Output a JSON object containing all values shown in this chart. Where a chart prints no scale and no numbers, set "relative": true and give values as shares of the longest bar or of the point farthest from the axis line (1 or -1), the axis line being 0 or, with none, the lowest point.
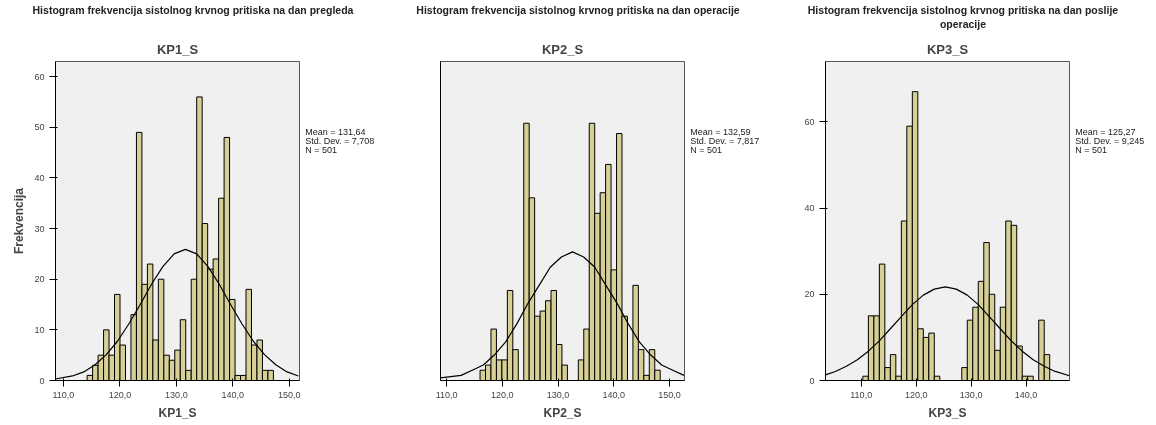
{
  "chart_data": [
    {
      "type": "histogram",
      "title": "Histogram frekvencija sistolnog krvnog pritiska na dan pregleda",
      "subtitle": "KP1_S",
      "xlabel": "KP1_S",
      "ylabel": "Frekvencija",
      "color": "#d6d097",
      "bins": [
        114.2,
        115.17,
        116.14,
        117.11,
        118.08,
        119.05,
        120.02,
        120.99,
        121.96,
        122.93,
        123.9,
        124.87,
        125.84,
        126.81,
        127.78,
        128.75,
        129.72,
        130.69,
        131.66,
        132.63,
        133.6,
        134.57,
        135.54,
        136.51,
        137.48,
        138.45,
        139.42,
        140.39,
        141.36,
        142.33,
        143.3,
        144.27,
        145.24,
        146.21,
        147.18
      ],
      "values": [
        1,
        3,
        5,
        10,
        5,
        17,
        7,
        0,
        13,
        49,
        19,
        23,
        8,
        20,
        5,
        4,
        6,
        12,
        2,
        20,
        56,
        31,
        22,
        24,
        36,
        48,
        16,
        1,
        1,
        18,
        7,
        8,
        2,
        2
      ],
      "series": [
        {
          "type": "line",
          "color": "#000000",
          "x": [
            108.6,
            111.6,
            113.6,
            115.6,
            117.6,
            119.6,
            121.6,
            123.6,
            125.6,
            127.6,
            129.6,
            131.6,
            133.6,
            135.6,
            137.6,
            139.6,
            141.6,
            143.6,
            145.6,
            147.6,
            149.6,
            151.6
          ],
          "values": [
            0.3,
            0.9,
            1.7,
            3.1,
            5.1,
            7.8,
            11.2,
            15.0,
            19.0,
            22.5,
            25.0,
            25.9,
            25.0,
            22.5,
            19.0,
            15.0,
            11.2,
            7.8,
            5.1,
            3.1,
            1.7,
            0.9
          ]
        }
      ],
      "xlim": [
        108.6,
        151.8
      ],
      "ylim": [
        0,
        63
      ],
      "xticks": [
        {
          "value": 110,
          "label": "110,0"
        },
        {
          "value": 120,
          "label": "120,0"
        },
        {
          "value": 130,
          "label": "130,0"
        },
        {
          "value": 140,
          "label": "140,0"
        },
        {
          "value": 150,
          "label": "150,0"
        }
      ],
      "yticks": [
        0,
        10,
        20,
        30,
        40,
        50,
        60
      ],
      "annotations": [
        "Mean = 131,64",
        "Std. Dev. = 7,708",
        "N = 501"
      ]
    },
    {
      "type": "histogram",
      "title": "Histogram frekvencija sistolnog krvnog pritiska na dan operacije",
      "subtitle": "KP2_S",
      "xlabel": "KP2_S",
      "color": "#d6d097",
      "relative": true,
      "bins": [
        116.0,
        116.98,
        117.96,
        118.94,
        119.92,
        120.9,
        121.88,
        122.86,
        123.84,
        124.82,
        125.8,
        126.78,
        127.76,
        128.74,
        129.72,
        130.7,
        131.68,
        132.66,
        133.64,
        134.62,
        135.6,
        136.58,
        137.56,
        138.54,
        139.52,
        140.5,
        141.48,
        142.46,
        143.44,
        144.42,
        145.4,
        146.38,
        147.36,
        148.34
      ],
      "values": [
        0.04,
        0.06,
        0.2,
        0.08,
        0.08,
        0.35,
        0.12,
        0,
        1,
        0.71,
        0.25,
        0.27,
        0.31,
        0.35,
        0.14,
        0.06,
        0,
        0,
        0.08,
        0.2,
        1,
        0.65,
        0.73,
        0.84,
        0.43,
        0.96,
        0.25,
        0,
        0.37,
        0.12,
        0.02,
        0.12,
        0.04
      ],
      "series": [
        {
          "type": "line",
          "color": "#000000",
          "x": [
            108.9,
            112.6,
            114.6,
            116.6,
            118.6,
            120.6,
            122.6,
            124.6,
            126.6,
            128.6,
            130.6,
            132.6,
            134.6,
            136.6,
            138.6,
            140.6,
            142.6,
            144.6,
            146.6,
            148.6,
            150.6,
            152.6
          ],
          "values": [
            0.01,
            0.02,
            0.04,
            0.06,
            0.1,
            0.15,
            0.22,
            0.3,
            0.37,
            0.44,
            0.48,
            0.5,
            0.48,
            0.44,
            0.37,
            0.3,
            0.22,
            0.15,
            0.1,
            0.06,
            0.04,
            0.02
          ]
        }
      ],
      "xlim": [
        108.9,
        152.7
      ],
      "xticks": [
        {
          "value": 110,
          "label": "110,0"
        },
        {
          "value": 120,
          "label": "120,0"
        },
        {
          "value": 130,
          "label": "130,0"
        },
        {
          "value": 140,
          "label": "140,0"
        },
        {
          "value": 150,
          "label": "150,0"
        }
      ],
      "annotations": [
        "Mean = 132,59",
        "Std. Dev. = 7,817",
        "N = 501"
      ]
    },
    {
      "type": "histogram",
      "title": "Histogram frekvencija sistolnog krvnog pritiska na dan poslije operacije",
      "subtitle": "KP3_S",
      "xlabel": "KP3_S",
      "color": "#d6d097",
      "bins": [
        110.3,
        111.3,
        112.3,
        113.3,
        114.3,
        115.3,
        116.3,
        117.3,
        118.3,
        119.3,
        120.3,
        121.3,
        122.3,
        123.3,
        124.3,
        125.3,
        126.3,
        127.3,
        128.3,
        129.3,
        130.3,
        131.3,
        132.3,
        133.3,
        134.3,
        135.3,
        136.3,
        137.3,
        138.3,
        139.3,
        140.3,
        141.3,
        142.3,
        143.3,
        144.3
      ],
      "values": [
        1,
        15,
        15,
        27,
        3,
        6,
        1,
        37,
        59,
        67,
        12,
        10,
        11,
        1,
        0,
        0,
        0,
        0,
        3,
        14,
        17,
        23,
        32,
        20,
        7,
        17,
        37,
        36,
        8,
        1,
        1,
        0,
        14,
        6
      ],
      "series": [
        {
          "type": "line",
          "color": "#000000",
          "x": [
            103.5,
            105.3,
            107.3,
            109.3,
            111.3,
            113.3,
            115.3,
            117.3,
            119.3,
            121.3,
            123.3,
            125.3,
            127.3,
            129.3,
            131.3,
            133.3,
            135.3,
            137.3,
            139.3,
            141.3,
            143.3,
            145.3,
            147.9
          ],
          "values": [
            1.3,
            2.1,
            3.3,
            4.8,
            6.8,
            9.2,
            12.0,
            14.8,
            17.6,
            19.8,
            21.2,
            21.7,
            21.2,
            19.8,
            17.6,
            14.8,
            12.0,
            9.2,
            6.8,
            4.8,
            3.3,
            2.1,
            1.1
          ]
        }
      ],
      "xlim": [
        103.5,
        147.9
      ],
      "ylim": [
        0,
        74
      ],
      "xticks": [
        {
          "value": 110,
          "label": "110,0"
        },
        {
          "value": 120,
          "label": "120,0"
        },
        {
          "value": 130,
          "label": "130,0"
        },
        {
          "value": 140,
          "label": "140,0"
        }
      ],
      "yticks": [
        0,
        20,
        40,
        60
      ],
      "annotations": [
        "Mean = 125,27",
        "Std. Dev. = 9,245",
        "N = 501"
      ]
    }
  ]
}
